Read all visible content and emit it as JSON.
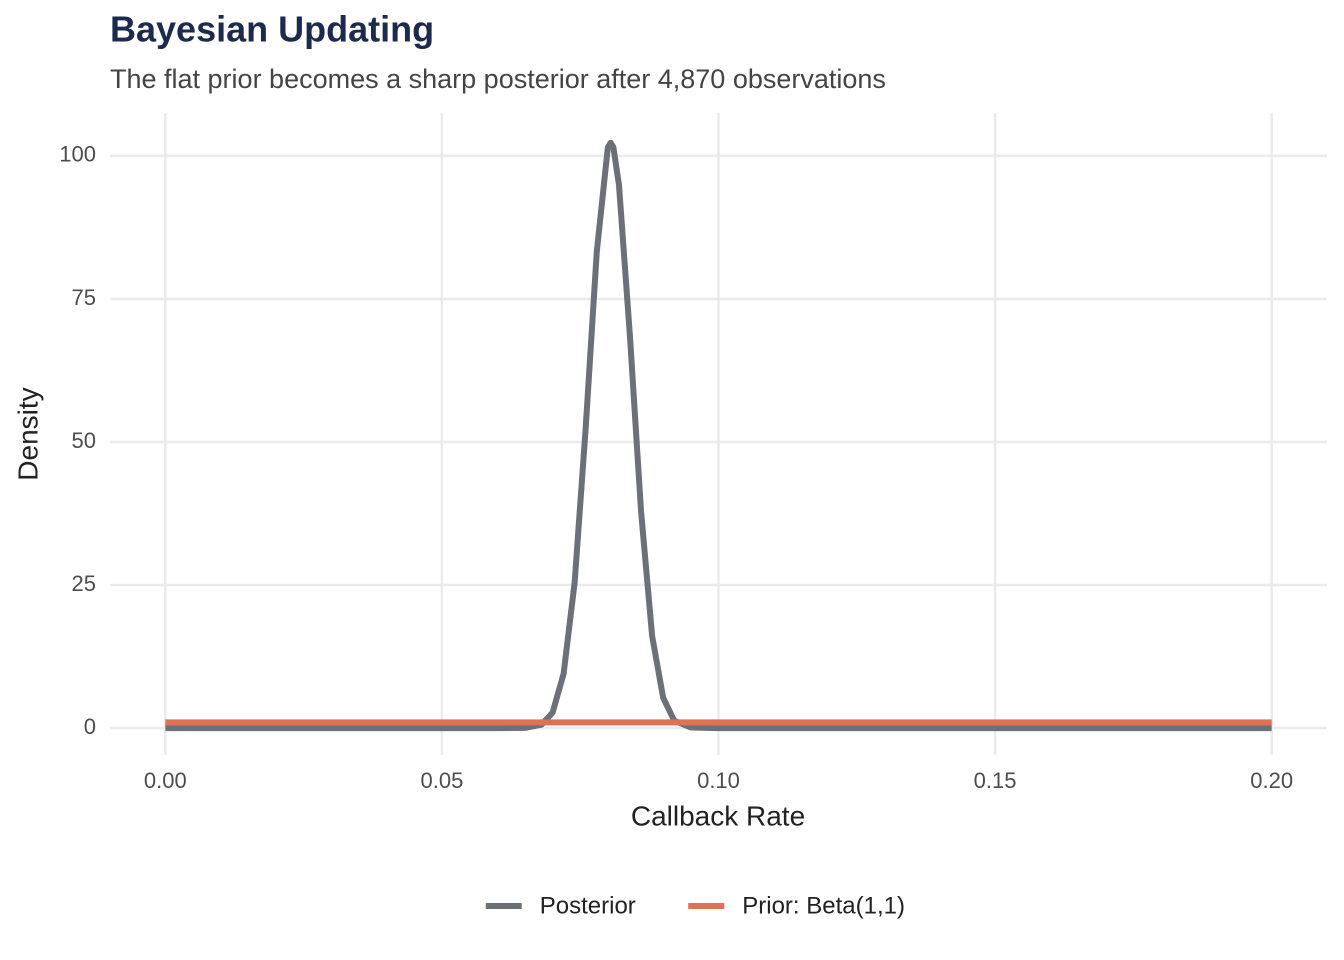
{
  "chart_data": {
    "type": "line",
    "title": "Bayesian Updating",
    "subtitle": "The flat prior becomes a sharp posterior after 4,870 observations",
    "xlabel": "Callback Rate",
    "ylabel": "Density",
    "x": [
      0,
      0.01,
      0.02,
      0.03,
      0.04,
      0.05,
      0.06,
      0.065,
      0.068,
      0.07,
      0.072,
      0.074,
      0.076,
      0.078,
      0.08,
      0.0805,
      0.081,
      0.082,
      0.084,
      0.086,
      0.088,
      0.09,
      0.092,
      0.095,
      0.1,
      0.11,
      0.12,
      0.13,
      0.14,
      0.15,
      0.16,
      0.17,
      0.18,
      0.19,
      0.2
    ],
    "series": [
      {
        "name": "Posterior",
        "color": "#6b7079",
        "values": [
          0,
          0,
          0,
          0,
          0,
          0,
          0,
          0.04,
          0.6,
          2.7,
          9.5,
          25.5,
          52.6,
          83.3,
          101.5,
          102.3,
          101.5,
          95.0,
          68.4,
          37.9,
          16.1,
          5.3,
          1.3,
          0.1,
          0,
          0,
          0,
          0,
          0,
          0,
          0,
          0,
          0,
          0,
          0
        ]
      },
      {
        "name": "Prior: Beta(1,1)",
        "color": "#e07152",
        "values": [
          1,
          1,
          1,
          1,
          1,
          1,
          1,
          1,
          1,
          1,
          1,
          1,
          1,
          1,
          1,
          1,
          1,
          1,
          1,
          1,
          1,
          1,
          1,
          1,
          1,
          1,
          1,
          1,
          1,
          1,
          1,
          1,
          1,
          1,
          1
        ]
      }
    ],
    "xlim": [
      -0.01,
      0.21
    ],
    "xticks": [
      {
        "value": 0,
        "label": "0.00"
      },
      {
        "value": 0.05,
        "label": "0.05"
      },
      {
        "value": 0.1,
        "label": "0.10"
      },
      {
        "value": 0.15,
        "label": "0.15"
      },
      {
        "value": 0.2,
        "label": "0.20"
      }
    ],
    "ylim": [
      -4.7,
      107.5
    ],
    "yticks": [
      0,
      25,
      50,
      75,
      100
    ],
    "grid": true,
    "legend": "bottom"
  }
}
